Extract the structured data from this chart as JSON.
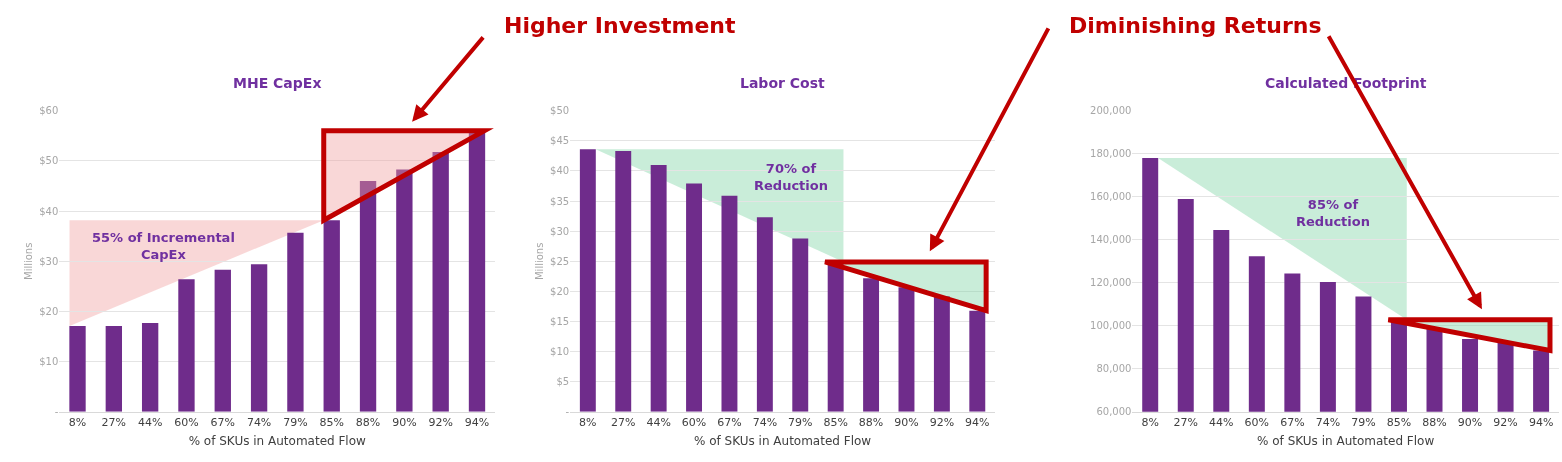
{
  "chart_data": [
    {
      "type": "bar",
      "title": "MHE CapEx",
      "xlabel": "% of SKUs in Automated Flow",
      "ylabel": "Millions",
      "categories": [
        "8%",
        "27%",
        "44%",
        "60%",
        "67%",
        "74%",
        "79%",
        "85%",
        "88%",
        "90%",
        "92%",
        "94%"
      ],
      "values": [
        17.1,
        17.1,
        17.7,
        26.4,
        28.3,
        29.4,
        35.7,
        38.2,
        46.0,
        48.3,
        51.8,
        56.0
      ],
      "color": "#6f2c8b",
      "ylim": [
        0,
        60
      ],
      "yticks": [
        {
          "value": 0,
          "label": "-"
        },
        {
          "value": 10,
          "label": "$10"
        },
        {
          "value": 20,
          "label": "$20"
        },
        {
          "value": 30,
          "label": "$30"
        },
        {
          "value": 40,
          "label": "$40"
        },
        {
          "value": 50,
          "label": "$50"
        },
        {
          "value": 60,
          "label": "$60"
        }
      ],
      "grid": "y",
      "annotations": [
        "Higher Investment",
        "55% of Incremental\nCapEx"
      ]
    },
    {
      "type": "bar",
      "title": "Labor Cost",
      "xlabel": "% of SKUs in Automated Flow",
      "ylabel": "Millions",
      "categories": [
        "8%",
        "27%",
        "44%",
        "60%",
        "67%",
        "74%",
        "79%",
        "85%",
        "88%",
        "90%",
        "92%",
        "94%"
      ],
      "values": [
        43.6,
        43.3,
        41.0,
        37.9,
        35.9,
        32.3,
        28.8,
        24.9,
        22.2,
        20.7,
        19.2,
        16.8
      ],
      "color": "#6f2c8b",
      "ylim": [
        0,
        50
      ],
      "yticks": [
        {
          "value": 0,
          "label": "-"
        },
        {
          "value": 5,
          "label": "$5"
        },
        {
          "value": 10,
          "label": "$10"
        },
        {
          "value": 15,
          "label": "$15"
        },
        {
          "value": 20,
          "label": "$20"
        },
        {
          "value": 25,
          "label": "$25"
        },
        {
          "value": 30,
          "label": "$30"
        },
        {
          "value": 35,
          "label": "$35"
        },
        {
          "value": 40,
          "label": "$40"
        },
        {
          "value": 45,
          "label": "$45"
        },
        {
          "value": 50,
          "label": "$50"
        }
      ],
      "grid": "y",
      "annotations": [
        "Diminishing Returns",
        "70% of\nReduction"
      ]
    },
    {
      "type": "bar",
      "title": "Calculated Footprint",
      "xlabel": "% of SKUs in Automated Flow",
      "categories": [
        "8%",
        "27%",
        "44%",
        "60%",
        "67%",
        "74%",
        "79%",
        "85%",
        "88%",
        "90%",
        "92%",
        "94%"
      ],
      "values": [
        178000,
        159000,
        144500,
        132300,
        124300,
        120400,
        113600,
        102800,
        98500,
        93900,
        92000,
        88500
      ],
      "color": "#6f2c8b",
      "ylim": [
        60000,
        200000
      ],
      "yticks": [
        {
          "value": 60000,
          "label": "60,000"
        },
        {
          "value": 80000,
          "label": "80,000"
        },
        {
          "value": 100000,
          "label": "100,000"
        },
        {
          "value": 120000,
          "label": "120,000"
        },
        {
          "value": 140000,
          "label": "140,000"
        },
        {
          "value": 160000,
          "label": "160,000"
        },
        {
          "value": 180000,
          "label": "180,000"
        },
        {
          "value": 200000,
          "label": "200,000"
        }
      ],
      "grid": "y",
      "annotations": [
        "85% of\nReduction"
      ]
    }
  ]
}
